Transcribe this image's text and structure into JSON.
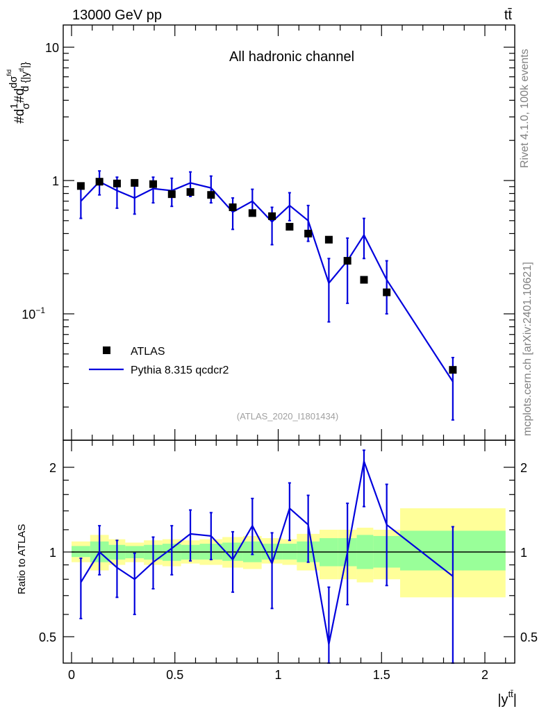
{
  "header": {
    "energy_label": "13000 GeV pp",
    "process_label": "tt̄",
    "rivet_label": "Rivet 4.1.0,  100k events",
    "source_label": "mcplots.cern.ch [arXiv:2401.10621]"
  },
  "colors": {
    "data": "#000000",
    "mc": "#0000dd",
    "band_inner": "#99ff99",
    "band_outer": "#ffff99",
    "analysis_tag": "#a0a0a0"
  },
  "chart_data": [
    {
      "type": "scatter",
      "panel": "main",
      "title": "All hadronic channel",
      "analysis_tag": "(ATLAS_2020_I1801434)",
      "ylabel": "#d1/σ#d dσ^fid / d {|y^tt̄|}",
      "yscale": "log",
      "ylim": [
        0.011,
        15
      ],
      "xlim": [
        -0.05,
        2.15
      ],
      "y_tick_labels": [
        {
          "value": 0.1,
          "base": "10",
          "exp": "−1"
        },
        {
          "value": 1,
          "base": "1",
          "exp": ""
        },
        {
          "value": 10,
          "base": "10",
          "exp": ""
        }
      ],
      "legend": {
        "position": "lower-left",
        "entries": [
          "ATLAS",
          "Pythia 8.315 qcdcr2"
        ]
      },
      "series": [
        {
          "name": "ATLAS",
          "style": "markers",
          "x": [
            0.045,
            0.135,
            0.22,
            0.305,
            0.395,
            0.485,
            0.575,
            0.675,
            0.78,
            0.875,
            0.97,
            1.055,
            1.145,
            1.245,
            1.335,
            1.415,
            1.525,
            1.845
          ],
          "y": [
            0.91,
            0.98,
            0.95,
            0.96,
            0.94,
            0.79,
            0.82,
            0.78,
            0.63,
            0.57,
            0.54,
            0.45,
            0.4,
            0.36,
            0.25,
            0.18,
            0.145,
            0.038
          ]
        },
        {
          "name": "Pythia 8.315 qcdcr2",
          "style": "line",
          "x": [
            0.045,
            0.135,
            0.22,
            0.305,
            0.395,
            0.485,
            0.575,
            0.675,
            0.78,
            0.875,
            0.97,
            1.055,
            1.145,
            1.245,
            1.335,
            1.415,
            1.525,
            1.845
          ],
          "y": [
            0.7,
            0.98,
            0.84,
            0.74,
            0.87,
            0.84,
            0.96,
            0.88,
            0.58,
            0.7,
            0.49,
            0.65,
            0.5,
            0.17,
            0.25,
            0.39,
            0.18,
            0.031
          ],
          "err_low": [
            0.52,
            0.78,
            0.62,
            0.56,
            0.68,
            0.64,
            0.76,
            0.68,
            0.43,
            0.55,
            0.33,
            0.5,
            0.35,
            0.087,
            0.12,
            0.26,
            0.1,
            0.016
          ],
          "err_high": [
            0.9,
            1.18,
            1.06,
            0.92,
            1.06,
            1.04,
            1.16,
            1.08,
            0.74,
            0.86,
            0.63,
            0.81,
            0.65,
            0.26,
            0.37,
            0.52,
            0.25,
            0.047
          ]
        }
      ]
    },
    {
      "type": "line",
      "panel": "ratio",
      "ylabel": "Ratio to ATLAS",
      "xlabel": "|y^tt̄|",
      "ylim": [
        0.35,
        2.3
      ],
      "xlim": [
        -0.05,
        2.15
      ],
      "x_tick_labels": [
        "0",
        "0.5",
        "1",
        "1.5",
        "2"
      ],
      "y_tick_labels": [
        "0.5",
        "1",
        "2"
      ],
      "bins": [
        0,
        0.09,
        0.18,
        0.26,
        0.35,
        0.44,
        0.53,
        0.62,
        0.73,
        0.83,
        0.92,
        1.02,
        1.09,
        1.2,
        1.29,
        1.38,
        1.46,
        1.59,
        2.1
      ],
      "band_outer": {
        "low": [
          0.92,
          0.86,
          0.9,
          0.92,
          0.9,
          0.89,
          0.91,
          0.9,
          0.88,
          0.87,
          0.91,
          0.9,
          0.86,
          0.8,
          0.8,
          0.78,
          0.8,
          0.69
        ],
        "high": [
          1.09,
          1.15,
          1.11,
          1.08,
          1.1,
          1.11,
          1.1,
          1.11,
          1.13,
          1.14,
          1.12,
          1.11,
          1.16,
          1.2,
          1.2,
          1.22,
          1.2,
          1.43
        ]
      },
      "band_inner": {
        "low": [
          0.96,
          0.92,
          0.94,
          0.95,
          0.94,
          0.93,
          0.94,
          0.94,
          0.93,
          0.92,
          0.94,
          0.94,
          0.92,
          0.89,
          0.89,
          0.87,
          0.88,
          0.86
        ]
      },
      "band_inner_high": [
        1.05,
        1.09,
        1.06,
        1.05,
        1.06,
        1.07,
        1.06,
        1.07,
        1.08,
        1.09,
        1.07,
        1.07,
        1.09,
        1.12,
        1.12,
        1.15,
        1.14,
        1.19
      ],
      "series": [
        {
          "name": "Pythia 8.315 qcdcr2",
          "x": [
            0.045,
            0.135,
            0.22,
            0.305,
            0.395,
            0.485,
            0.575,
            0.675,
            0.78,
            0.875,
            0.97,
            1.055,
            1.145,
            1.245,
            1.335,
            1.415,
            1.525,
            1.845
          ],
          "y": [
            0.78,
            1.0,
            0.88,
            0.8,
            0.92,
            1.03,
            1.16,
            1.14,
            0.94,
            1.24,
            0.91,
            1.43,
            1.25,
            0.47,
            1.0,
            2.1,
            1.25,
            0.82
          ],
          "err_low": [
            0.58,
            0.83,
            0.69,
            0.6,
            0.74,
            0.83,
            0.93,
            0.94,
            0.72,
            0.98,
            0.63,
            1.1,
            0.92,
            0.34,
            0.65,
            1.45,
            0.76,
            0.34
          ],
          "err_high": [
            0.95,
            1.24,
            1.1,
            0.99,
            1.13,
            1.24,
            1.41,
            1.38,
            1.18,
            1.55,
            1.17,
            1.76,
            1.59,
            0.75,
            1.49,
            2.3,
            1.74,
            1.23
          ]
        }
      ]
    }
  ]
}
